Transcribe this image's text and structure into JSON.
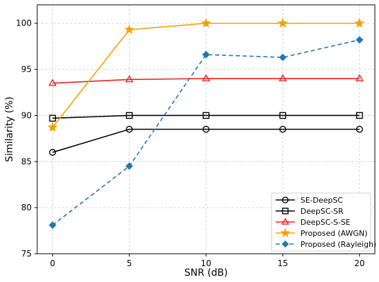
{
  "chart_data": {
    "type": "line",
    "title": "",
    "xlabel": "SNR (dB)",
    "ylabel": "Similarity (%)",
    "x": [
      0,
      5,
      10,
      15,
      20
    ],
    "xlim": [
      -1,
      21
    ],
    "ylim": [
      75,
      102
    ],
    "xticks": [
      0,
      5,
      10,
      15,
      20
    ],
    "yticks": [
      75,
      80,
      85,
      90,
      95,
      100
    ],
    "grid": true,
    "legend_position": "lower-right",
    "series": [
      {
        "name": "SE-DeepSC",
        "values": [
          86.0,
          88.5,
          88.5,
          88.5,
          88.5
        ],
        "color": "#000000",
        "marker": "circle",
        "line_style": "solid"
      },
      {
        "name": "DeepSC-SR",
        "values": [
          89.7,
          90.0,
          90.0,
          90.0,
          90.0
        ],
        "color": "#000000",
        "marker": "square",
        "line_style": "solid"
      },
      {
        "name": "DeepSC-S-SE",
        "values": [
          93.5,
          93.9,
          94.0,
          94.0,
          94.0
        ],
        "color": "#e8211d",
        "marker": "triangle",
        "line_style": "solid"
      },
      {
        "name": "Proposed (AWGN)",
        "values": [
          88.7,
          99.3,
          100.0,
          100.0,
          100.0
        ],
        "color": "#f5a000",
        "marker": "star",
        "line_style": "solid"
      },
      {
        "name": "Proposed (Rayleigh)",
        "values": [
          78.1,
          84.5,
          96.6,
          96.3,
          98.2
        ],
        "color": "#1f77b4",
        "marker": "diamond",
        "line_style": "dashed"
      }
    ]
  }
}
